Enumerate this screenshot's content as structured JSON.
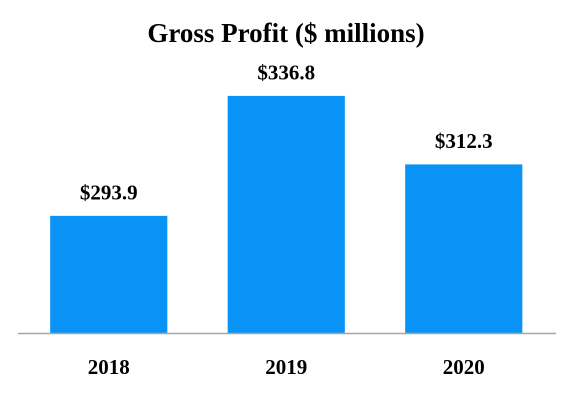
{
  "chart_data": {
    "type": "bar",
    "title": "Gross Profit ($ millions)",
    "categories": [
      "2018",
      "2019",
      "2020"
    ],
    "values": [
      293.9,
      336.8,
      312.3
    ],
    "value_labels": [
      "$293.9",
      "$336.8",
      "$312.3"
    ],
    "color": "#0a93f7",
    "ylim": [
      252,
      350
    ]
  }
}
